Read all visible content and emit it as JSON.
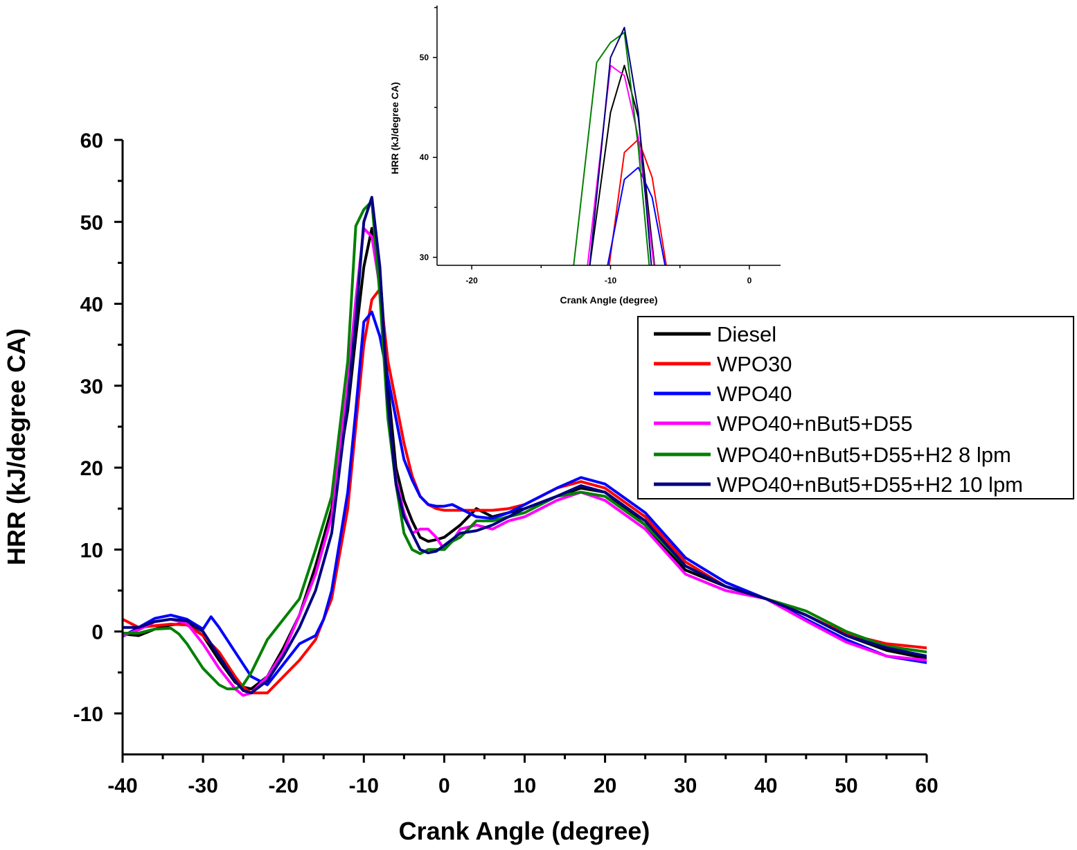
{
  "chart_data": [
    {
      "type": "line",
      "name": "main",
      "xlabel": "Crank Angle (degree)",
      "ylabel": "HRR (kJ/degree CA)",
      "xlim": [
        -40,
        60
      ],
      "ylim": [
        -15,
        60
      ],
      "xticks": [
        -40,
        -30,
        -20,
        -10,
        0,
        10,
        20,
        30,
        40,
        50,
        60
      ],
      "yticks": [
        -10,
        0,
        10,
        20,
        30,
        40,
        50,
        60
      ],
      "xtick_labels": [
        "-40",
        "-30",
        "-20",
        "-10",
        "0",
        "10",
        "20",
        "30",
        "40",
        "50",
        "60"
      ],
      "ytick_labels": [
        "-10",
        "0",
        "10",
        "20",
        "30",
        "40",
        "50",
        "60"
      ],
      "legend_position": "upper-right",
      "series": [
        {
          "name": "Diesel",
          "color": "#000000",
          "x": [
            -40,
            -38,
            -36,
            -34,
            -32,
            -30,
            -28,
            -26,
            -25,
            -24,
            -22,
            -20,
            -18,
            -16,
            -14,
            -12,
            -11,
            -10,
            -9,
            -8,
            -7,
            -6,
            -5,
            -4,
            -3,
            -2,
            -1,
            0,
            2,
            4,
            6,
            8,
            10,
            14,
            17,
            20,
            25,
            30,
            35,
            40,
            45,
            50,
            55,
            60
          ],
          "y": [
            -0.3,
            -0.5,
            0.3,
            0.8,
            1.0,
            -0.5,
            -3.5,
            -6.2,
            -6.8,
            -7.0,
            -5.5,
            -2.0,
            2.0,
            8.0,
            15.0,
            27.0,
            36.0,
            44.5,
            49.2,
            44.0,
            30.0,
            20.0,
            16.0,
            13.5,
            11.5,
            11.0,
            11.2,
            11.5,
            13.0,
            15.0,
            14.0,
            14.5,
            15.0,
            16.5,
            17.5,
            17.0,
            13.0,
            7.5,
            5.5,
            4.0,
            2.0,
            -0.5,
            -2.3,
            -3.3
          ]
        },
        {
          "name": "WPO30",
          "color": "#ff0000",
          "x": [
            -40,
            -38,
            -36,
            -34,
            -32,
            -30,
            -28,
            -26,
            -25,
            -24,
            -22,
            -20,
            -18,
            -16,
            -14,
            -12,
            -11,
            -10,
            -9,
            -8,
            -7,
            -6,
            -5,
            -4,
            -3,
            -2,
            -1,
            0,
            2,
            4,
            6,
            8,
            10,
            14,
            17,
            20,
            25,
            30,
            35,
            40,
            45,
            50,
            55,
            60
          ],
          "y": [
            1.5,
            0.5,
            0.7,
            0.9,
            0.8,
            -0.5,
            -2.5,
            -5.5,
            -6.8,
            -7.5,
            -7.5,
            -5.5,
            -3.5,
            -1.0,
            4.0,
            15.0,
            25.0,
            35.0,
            40.5,
            41.8,
            33.0,
            28.0,
            23.0,
            19.0,
            16.5,
            15.5,
            15.0,
            14.8,
            14.8,
            14.8,
            14.8,
            15.0,
            15.5,
            17.5,
            18.3,
            17.5,
            14.0,
            8.5,
            5.5,
            4.0,
            2.0,
            -0.3,
            -1.5,
            -2.0
          ]
        },
        {
          "name": "WPO40",
          "color": "#0000ff",
          "x": [
            -40,
            -38,
            -36,
            -34,
            -32,
            -30,
            -29,
            -28,
            -26,
            -24,
            -22,
            -20,
            -18,
            -16,
            -15,
            -14,
            -12,
            -11,
            -10,
            -9,
            -8,
            -7,
            -6,
            -5,
            -4,
            -3,
            -2,
            -1,
            0,
            1,
            2,
            3,
            4,
            6,
            8,
            10,
            14,
            17,
            20,
            25,
            30,
            35,
            40,
            45,
            50,
            55,
            60
          ],
          "y": [
            -0.6,
            0.5,
            1.6,
            2.0,
            1.5,
            0.3,
            1.8,
            0.5,
            -2.5,
            -5.5,
            -6.5,
            -4.0,
            -1.5,
            -0.5,
            1.5,
            5.0,
            17.0,
            27.0,
            37.8,
            39.0,
            36.0,
            31.0,
            26.0,
            21.0,
            18.5,
            16.5,
            15.5,
            15.3,
            15.3,
            15.5,
            15.0,
            14.5,
            14.0,
            13.8,
            14.5,
            15.5,
            17.5,
            18.8,
            18.0,
            14.5,
            9.0,
            6.0,
            4.0,
            1.5,
            -1.0,
            -3.0,
            -3.8
          ]
        },
        {
          "name": "WPO40+nBut5+D55",
          "color": "#ff00ff",
          "x": [
            -40,
            -38,
            -36,
            -34,
            -32,
            -30,
            -28,
            -26,
            -25,
            -24,
            -22,
            -20,
            -18,
            -16,
            -14,
            -12,
            -11,
            -10,
            -9,
            -8,
            -7,
            -6,
            -5,
            -4,
            -3,
            -2,
            -1,
            0,
            1,
            2,
            4,
            6,
            8,
            10,
            14,
            17,
            20,
            25,
            30,
            35,
            40,
            45,
            50,
            55,
            60
          ],
          "y": [
            -0.5,
            0.2,
            1.2,
            1.5,
            1.0,
            -1.5,
            -4.5,
            -7.0,
            -7.8,
            -7.5,
            -5.5,
            -2.5,
            2.0,
            7.0,
            14.0,
            30.0,
            40.5,
            49.2,
            48.2,
            42.0,
            27.0,
            18.5,
            14.5,
            12.0,
            12.5,
            12.5,
            11.5,
            10.0,
            11.0,
            12.5,
            13.0,
            12.5,
            13.5,
            14.0,
            16.0,
            17.0,
            16.0,
            12.5,
            7.0,
            5.0,
            4.0,
            1.3,
            -1.3,
            -3.0,
            -3.5
          ]
        },
        {
          "name": "WPO40+nBut5+D55+H2 8 lpm",
          "color": "#008000",
          "x": [
            -40,
            -38,
            -36,
            -34,
            -33,
            -32,
            -30,
            -28,
            -27,
            -26,
            -25,
            -24,
            -22,
            -20,
            -18,
            -16,
            -14,
            -12,
            -11,
            -10,
            -9,
            -8,
            -7,
            -6,
            -5,
            -4,
            -3,
            -2,
            -1,
            0,
            1,
            2,
            4,
            6,
            8,
            10,
            14,
            17,
            20,
            25,
            30,
            35,
            40,
            45,
            50,
            55,
            60
          ],
          "y": [
            -0.2,
            -0.2,
            0.3,
            0.4,
            -0.3,
            -1.5,
            -4.5,
            -6.5,
            -7.0,
            -7.0,
            -6.5,
            -5.0,
            -1.0,
            1.5,
            4.0,
            10.0,
            16.5,
            33.0,
            49.5,
            51.5,
            52.5,
            41.0,
            26.0,
            18.0,
            12.0,
            10.0,
            9.5,
            10.0,
            10.0,
            10.0,
            11.0,
            11.5,
            13.5,
            13.5,
            14.0,
            14.5,
            16.5,
            17.0,
            16.5,
            13.0,
            8.0,
            5.5,
            4.0,
            2.5,
            0.0,
            -1.8,
            -2.5
          ]
        },
        {
          "name": "WPO40+nBut5+D55+H2 10 lpm",
          "color": "#000080",
          "x": [
            -40,
            -38,
            -36,
            -34,
            -32,
            -30,
            -28,
            -26,
            -25,
            -24,
            -22,
            -20,
            -18,
            -16,
            -14,
            -12,
            -11,
            -10,
            -9,
            -8,
            -7,
            -6,
            -5,
            -4,
            -3,
            -2,
            -1,
            0,
            2,
            4,
            6,
            8,
            10,
            14,
            17,
            20,
            25,
            30,
            35,
            40,
            45,
            50,
            55,
            60
          ],
          "y": [
            0.5,
            0.5,
            1.2,
            1.5,
            1.3,
            0.0,
            -3.0,
            -6.0,
            -7.2,
            -7.5,
            -6.0,
            -3.0,
            0.5,
            5.0,
            12.0,
            28.0,
            38.0,
            50.0,
            53.0,
            44.5,
            28.0,
            18.0,
            14.0,
            12.0,
            10.0,
            9.6,
            9.8,
            10.5,
            12.0,
            12.3,
            13.0,
            14.0,
            15.0,
            16.5,
            17.8,
            17.0,
            13.5,
            8.0,
            5.5,
            4.0,
            2.0,
            -0.5,
            -2.0,
            -3.0
          ]
        }
      ]
    },
    {
      "type": "line",
      "name": "inset",
      "xlabel": "Crank Angle (degree)",
      "ylabel": "HRR (kJ/degree CA)",
      "xlim": [
        -22.5,
        2.25
      ],
      "ylim": [
        29.2,
        55.2
      ],
      "xticks": [
        -20,
        -10,
        0
      ],
      "yticks": [
        30,
        40,
        50
      ],
      "xtick_labels": [
        "-20",
        "-10",
        "0"
      ],
      "ytick_labels": [
        "30",
        "40",
        "50"
      ],
      "series": [
        {
          "name": "Diesel",
          "color": "#000000",
          "x": [
            -12.0,
            -10.0,
            -9.0,
            -8.0,
            -6.5
          ],
          "y": [
            24.0,
            44.5,
            49.2,
            44.0,
            25.0
          ]
        },
        {
          "name": "WPO30",
          "color": "#ff0000",
          "x": [
            -10.5,
            -9.0,
            -8.0,
            -7.0,
            -5.5
          ],
          "y": [
            25.0,
            40.5,
            41.8,
            38.0,
            25.0
          ]
        },
        {
          "name": "WPO40",
          "color": "#0000ff",
          "x": [
            -10.8,
            -9.0,
            -8.0,
            -7.0,
            -5.5
          ],
          "y": [
            25.0,
            37.8,
            39.0,
            36.0,
            25.0
          ]
        },
        {
          "name": "WPO40+nBut5+D55",
          "color": "#ff00ff",
          "x": [
            -12.0,
            -10.0,
            -9.0,
            -8.0,
            -6.5
          ],
          "y": [
            25.0,
            49.2,
            48.2,
            42.0,
            25.0
          ]
        },
        {
          "name": "WPO40+nBut5+D55+H2 8 lpm",
          "color": "#008000",
          "x": [
            -13.0,
            -11.0,
            -10.0,
            -9.0,
            -8.0,
            -7.0
          ],
          "y": [
            25.0,
            49.5,
            51.5,
            52.5,
            41.0,
            26.0
          ]
        },
        {
          "name": "WPO40+nBut5+D55+H2 10 lpm",
          "color": "#000080",
          "x": [
            -11.8,
            -10.0,
            -9.0,
            -8.0,
            -6.8
          ],
          "y": [
            25.0,
            50.0,
            53.0,
            44.5,
            25.0
          ]
        }
      ]
    }
  ]
}
